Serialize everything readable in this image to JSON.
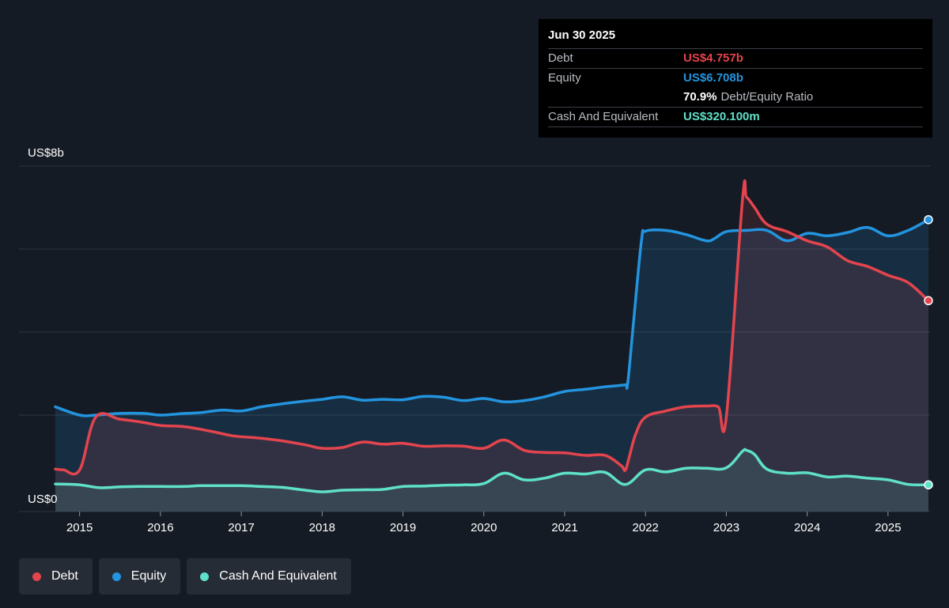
{
  "tooltip": {
    "date": "Jun 30 2025",
    "debt_label": "Debt",
    "debt_value": "US$4.757b",
    "equity_label": "Equity",
    "equity_value": "US$6.708b",
    "ratio_value": "70.9%",
    "ratio_label": "Debt/Equity Ratio",
    "cash_label": "Cash And Equivalent",
    "cash_value": "US$320.100m"
  },
  "legend": [
    {
      "label": "Debt",
      "color": "#e4444d"
    },
    {
      "label": "Equity",
      "color": "#2394df"
    },
    {
      "label": "Cash And Equivalent",
      "color": "#5fe0c8"
    }
  ],
  "colors": {
    "background": "#151b24",
    "debt": "#e4444d",
    "equity": "#2394df",
    "cash": "#5fe0c8",
    "grid": "#2f3640"
  },
  "chart_data": {
    "type": "area",
    "title": "",
    "xlabel": "",
    "ylabel": "",
    "y_top_label": "US$8b",
    "y_bottom_label": "US$0",
    "ylim": [
      0,
      8
    ],
    "y_unit": "US$ billions",
    "grid": true,
    "legend_position": "bottom-left",
    "x_ticks": [
      "2015",
      "2016",
      "2017",
      "2018",
      "2019",
      "2020",
      "2021",
      "2022",
      "2023",
      "2024",
      "2025"
    ],
    "series": [
      {
        "name": "Debt",
        "x": [
          2014.7,
          2014.8,
          2015.0,
          2015.2,
          2015.5,
          2015.8,
          2016.0,
          2016.3,
          2016.6,
          2016.9,
          2017.2,
          2017.5,
          2017.8,
          2018.0,
          2018.25,
          2018.5,
          2018.75,
          2019.0,
          2019.25,
          2019.5,
          2019.75,
          2020.0,
          2020.25,
          2020.5,
          2020.75,
          2021.0,
          2021.25,
          2021.5,
          2021.7,
          2021.75,
          2021.8,
          2021.88,
          2022.0,
          2022.25,
          2022.5,
          2022.75,
          2022.9,
          2023.0,
          2023.2,
          2023.25,
          2023.35,
          2023.5,
          2023.75,
          2024.0,
          2024.25,
          2024.5,
          2024.75,
          2025.0,
          2025.25,
          2025.5
        ],
        "values": [
          0.7,
          0.68,
          0.68,
          1.95,
          1.9,
          1.82,
          1.75,
          1.72,
          1.62,
          1.5,
          1.45,
          1.38,
          1.28,
          1.2,
          1.22,
          1.35,
          1.3,
          1.32,
          1.25,
          1.26,
          1.25,
          1.2,
          1.4,
          1.15,
          1.1,
          1.09,
          1.03,
          1.03,
          0.78,
          0.67,
          1.0,
          1.55,
          1.95,
          2.1,
          2.2,
          2.22,
          2.2,
          1.95,
          7.2,
          7.25,
          7.0,
          6.6,
          6.42,
          6.2,
          6.05,
          5.72,
          5.58,
          5.37,
          5.19,
          4.757
        ]
      },
      {
        "name": "Equity",
        "x": [
          2014.7,
          2015.0,
          2015.2,
          2015.5,
          2015.8,
          2016.0,
          2016.3,
          2016.5,
          2016.75,
          2017.0,
          2017.25,
          2017.5,
          2017.75,
          2018.0,
          2018.25,
          2018.5,
          2018.75,
          2019.0,
          2019.25,
          2019.5,
          2019.75,
          2020.0,
          2020.25,
          2020.5,
          2020.75,
          2021.0,
          2021.25,
          2021.5,
          2021.75,
          2021.78,
          2021.85,
          2021.95,
          2022.0,
          2022.25,
          2022.5,
          2022.75,
          2022.85,
          2023.0,
          2023.25,
          2023.5,
          2023.75,
          2024.0,
          2024.25,
          2024.5,
          2024.75,
          2025.0,
          2025.25,
          2025.5
        ],
        "values": [
          2.2,
          2.0,
          2.0,
          2.04,
          2.04,
          2.0,
          2.04,
          2.06,
          2.12,
          2.1,
          2.2,
          2.27,
          2.33,
          2.38,
          2.44,
          2.36,
          2.38,
          2.37,
          2.45,
          2.43,
          2.35,
          2.4,
          2.32,
          2.35,
          2.44,
          2.57,
          2.62,
          2.68,
          2.73,
          2.77,
          4.2,
          6.2,
          6.43,
          6.45,
          6.35,
          6.2,
          6.25,
          6.42,
          6.45,
          6.45,
          6.2,
          6.38,
          6.32,
          6.4,
          6.52,
          6.32,
          6.45,
          6.708
        ]
      },
      {
        "name": "Cash And Equivalent",
        "x": [
          2014.7,
          2015.0,
          2015.25,
          2015.5,
          2015.75,
          2016.0,
          2016.3,
          2016.5,
          2016.75,
          2017.0,
          2017.25,
          2017.5,
          2017.75,
          2018.0,
          2018.25,
          2018.5,
          2018.75,
          2019.0,
          2019.25,
          2019.5,
          2019.75,
          2020.0,
          2020.25,
          2020.5,
          2020.75,
          2021.0,
          2021.25,
          2021.5,
          2021.75,
          2022.0,
          2022.25,
          2022.5,
          2022.75,
          2023.0,
          2023.2,
          2023.25,
          2023.35,
          2023.5,
          2023.75,
          2024.0,
          2024.25,
          2024.5,
          2024.75,
          2025.0,
          2025.25,
          2025.5
        ],
        "values": [
          0.34,
          0.32,
          0.25,
          0.27,
          0.28,
          0.28,
          0.28,
          0.3,
          0.3,
          0.3,
          0.28,
          0.26,
          0.2,
          0.15,
          0.19,
          0.2,
          0.21,
          0.28,
          0.29,
          0.31,
          0.32,
          0.35,
          0.6,
          0.44,
          0.48,
          0.6,
          0.58,
          0.62,
          0.33,
          0.68,
          0.63,
          0.72,
          0.72,
          0.73,
          1.13,
          1.15,
          1.05,
          0.7,
          0.6,
          0.61,
          0.51,
          0.53,
          0.48,
          0.44,
          0.33,
          0.3201
        ]
      }
    ]
  }
}
